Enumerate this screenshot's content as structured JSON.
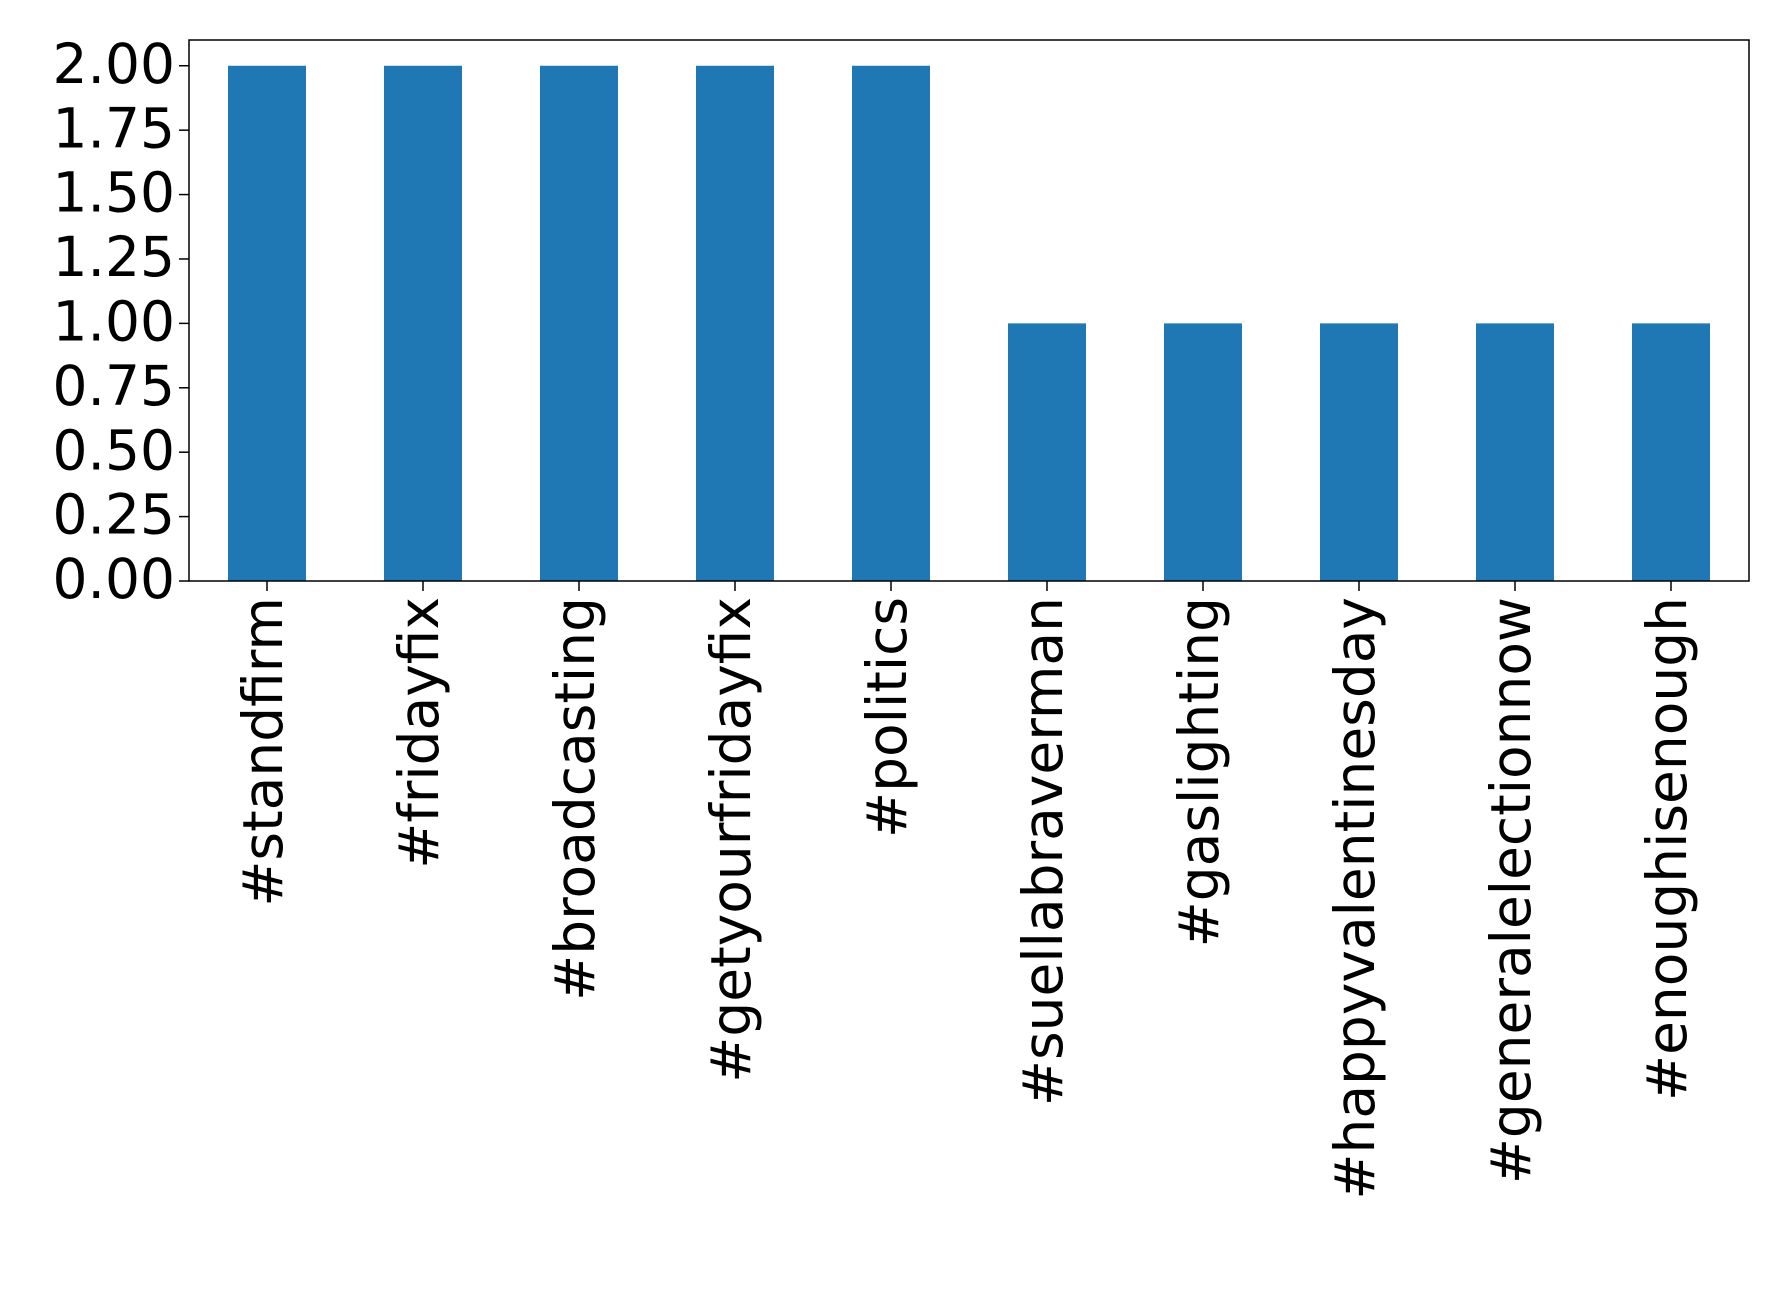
{
  "chart_data": {
    "type": "bar",
    "categories": [
      "#standfirm",
      "#fridayfix",
      "#broadcasting",
      "#getyourfridayfix",
      "#politics",
      "#suellabraverman",
      "#gaslighting",
      "#happyvalentinesday",
      "#generalelectionnow",
      "#enoughisenough"
    ],
    "values": [
      2,
      2,
      2,
      2,
      2,
      1,
      1,
      1,
      1,
      1
    ],
    "color": "#1f77b4",
    "ylim": [
      0,
      2.1
    ],
    "yticks": [
      {
        "value": 0,
        "label": "0.00"
      },
      {
        "value": 0.25,
        "label": "0.25"
      },
      {
        "value": 0.5,
        "label": "0.50"
      },
      {
        "value": 0.75,
        "label": "0.75"
      },
      {
        "value": 1,
        "label": "1.00"
      },
      {
        "value": 1.25,
        "label": "1.25"
      },
      {
        "value": 1.5,
        "label": "1.50"
      },
      {
        "value": 1.75,
        "label": "1.75"
      },
      {
        "value": 2,
        "label": "2.00"
      }
    ],
    "grid": false
  }
}
